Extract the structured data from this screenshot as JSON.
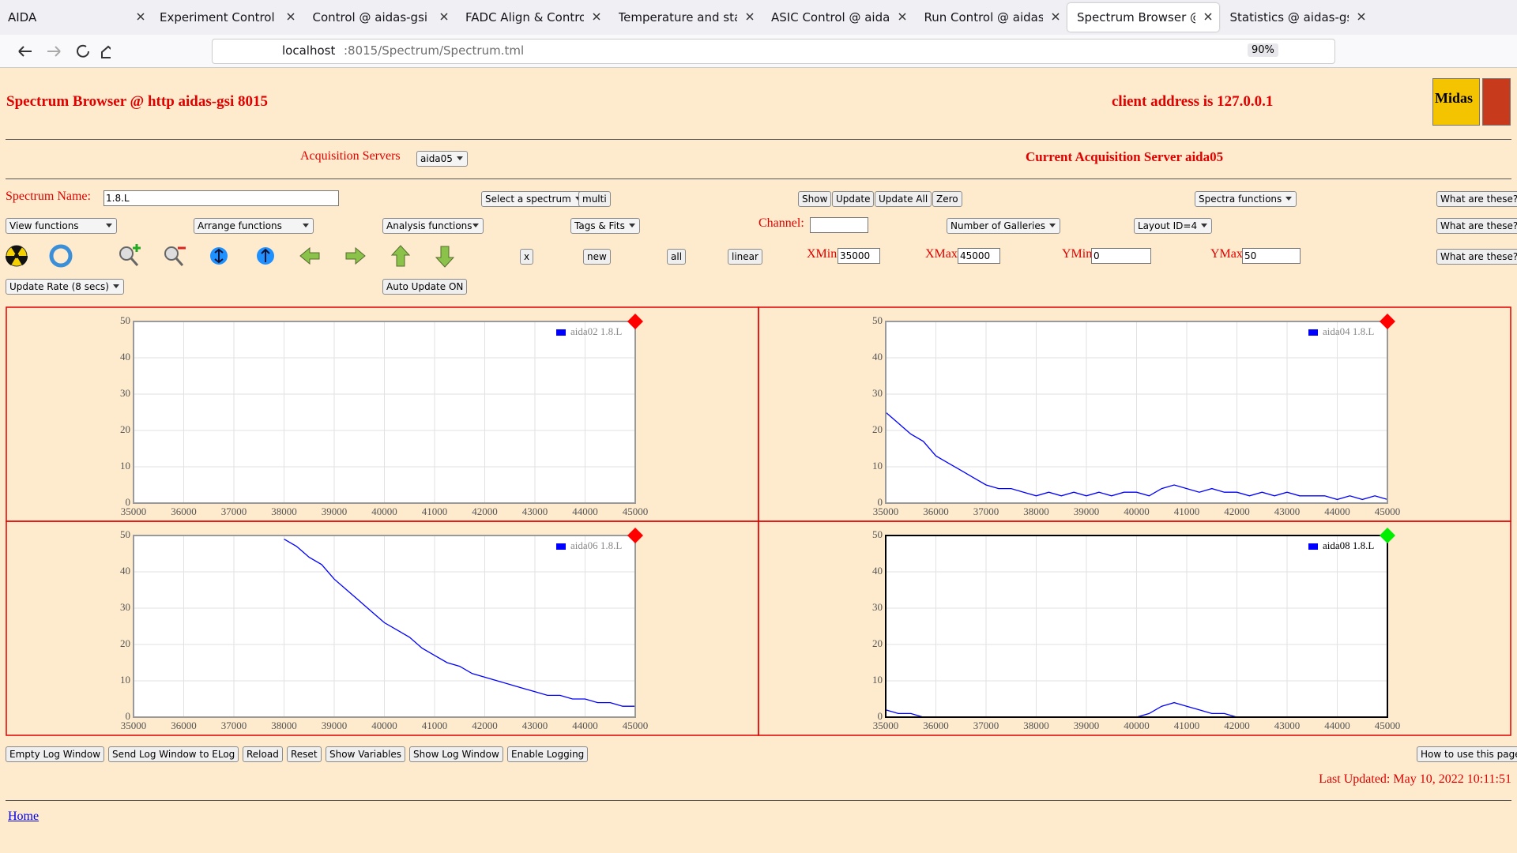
{
  "browser": {
    "tabs": [
      "AIDA",
      "Experiment Control @ ai",
      "Control @ aidas-gsi",
      "FADC Align & Control @",
      "Temperature and status",
      "ASIC Control @ aidas-gs",
      "Run Control @ aidas-gsi",
      "Spectrum Browser @ aid",
      "Statistics @ aidas-gsi"
    ],
    "active_tab": 7,
    "url_host": "localhost",
    "url_rest": ":8015/Spectrum/Spectrum.tml",
    "zoom": "90%"
  },
  "header": {
    "title": "Spectrum Browser @ http aidas-gsi 8015",
    "client": "client address is 127.0.0.1",
    "acq_label": "Acquisition Servers",
    "acq_select": "aida05",
    "current_server": "Current Acquisition Server aida05",
    "logo": "Midas"
  },
  "controls": {
    "spectrum_name_label": "Spectrum Name:",
    "spectrum_name": "1.8.L",
    "select_spectrum": "Select a spectrum",
    "multi": "multi",
    "buttons1": [
      "Show",
      "Update",
      "Update All",
      "Zero"
    ],
    "spectra_functions": "Spectra functions",
    "help": [
      "What are these?",
      "What are these?",
      "What are these?"
    ],
    "view": "View functions",
    "arrange": "Arrange functions",
    "analysis": "Analysis functions",
    "tags": "Tags & Fits",
    "channel_label": "Channel:",
    "galleries": "Number of Galleries",
    "layout": "Layout ID=4",
    "buttons3": [
      "x",
      "new",
      "all",
      "linear"
    ],
    "xmin_label": "XMin",
    "xmin": "35000",
    "xmax_label": "XMax",
    "xmax": "45000",
    "ymin_label": "YMin",
    "ymin": "0",
    "ymax_label": "YMax",
    "ymax": "50",
    "update_rate": "Update Rate (8 secs)",
    "auto_update": "Auto Update ON"
  },
  "chart_data": [
    {
      "type": "line",
      "xlim": [
        35000,
        45000
      ],
      "ylim": [
        0,
        50
      ],
      "xticks": [
        35000,
        36000,
        37000,
        38000,
        39000,
        40000,
        41000,
        42000,
        43000,
        44000,
        45000
      ],
      "yticks": [
        0,
        10,
        20,
        30,
        40,
        50
      ],
      "grid": true,
      "legend": "top-right",
      "frame_color": "#999999",
      "marker_color": "#ff0000",
      "x": [
        35000,
        35250,
        35500,
        35750,
        36000,
        36250,
        36500,
        36750,
        37000,
        37250,
        37500,
        37750,
        38000,
        38250,
        38500,
        38750,
        39000,
        39250,
        39500,
        39750,
        40000,
        40250,
        40500,
        40750,
        41000,
        41250,
        41500,
        41750,
        42000,
        42250,
        42500,
        42750,
        43000,
        43250,
        43500,
        43750,
        44000,
        44250,
        44500,
        44750,
        45000
      ],
      "series": [
        {
          "name": "aida02 1.8.L",
          "color": "#0000ff",
          "values": [
            0,
            0,
            0,
            0,
            0,
            0,
            0,
            0,
            0,
            0,
            0,
            0,
            0,
            0,
            0,
            0,
            0,
            0,
            0,
            0,
            0,
            0,
            0,
            0,
            0,
            0,
            0,
            0,
            0,
            0,
            0,
            0,
            0,
            0,
            0,
            0,
            0,
            0,
            0,
            0,
            0
          ]
        }
      ]
    },
    {
      "type": "line",
      "xlim": [
        35000,
        45000
      ],
      "ylim": [
        0,
        50
      ],
      "xticks": [
        35000,
        36000,
        37000,
        38000,
        39000,
        40000,
        41000,
        42000,
        43000,
        44000,
        45000
      ],
      "yticks": [
        0,
        10,
        20,
        30,
        40,
        50
      ],
      "grid": true,
      "legend": "top-right",
      "frame_color": "#999999",
      "marker_color": "#ff0000",
      "x": [
        35000,
        35250,
        35500,
        35750,
        36000,
        36250,
        36500,
        36750,
        37000,
        37250,
        37500,
        37750,
        38000,
        38250,
        38500,
        38750,
        39000,
        39250,
        39500,
        39750,
        40000,
        40250,
        40500,
        40750,
        41000,
        41250,
        41500,
        41750,
        42000,
        42250,
        42500,
        42750,
        43000,
        43250,
        43500,
        43750,
        44000,
        44250,
        44500,
        44750,
        45000
      ],
      "series": [
        {
          "name": "aida04 1.8.L",
          "color": "#0000ff",
          "values": [
            25,
            22,
            19,
            17,
            13,
            11,
            9,
            7,
            5,
            4,
            4,
            3,
            2,
            3,
            2,
            3,
            2,
            3,
            2,
            3,
            3,
            2,
            4,
            5,
            4,
            3,
            4,
            3,
            3,
            2,
            3,
            2,
            3,
            2,
            2,
            2,
            1,
            2,
            1,
            2,
            1
          ]
        }
      ]
    },
    {
      "type": "line",
      "xlim": [
        35000,
        45000
      ],
      "ylim": [
        0,
        50
      ],
      "xticks": [
        35000,
        36000,
        37000,
        38000,
        39000,
        40000,
        41000,
        42000,
        43000,
        44000,
        45000
      ],
      "yticks": [
        0,
        10,
        20,
        30,
        40,
        50
      ],
      "grid": true,
      "legend": "top-right",
      "frame_color": "#999999",
      "marker_color": "#ff0000",
      "x": [
        35000,
        35250,
        35500,
        35750,
        36000,
        36250,
        36500,
        36750,
        37000,
        37250,
        37500,
        37750,
        38000,
        38250,
        38500,
        38750,
        39000,
        39250,
        39500,
        39750,
        40000,
        40250,
        40500,
        40750,
        41000,
        41250,
        41500,
        41750,
        42000,
        42250,
        42500,
        42750,
        43000,
        43250,
        43500,
        43750,
        44000,
        44250,
        44500,
        44750,
        45000
      ],
      "series": [
        {
          "name": "aida06 1.8.L",
          "color": "#0000ff",
          "values": [
            null,
            null,
            null,
            null,
            null,
            null,
            null,
            null,
            null,
            null,
            null,
            null,
            49,
            47,
            44,
            42,
            38,
            35,
            32,
            29,
            26,
            24,
            22,
            19,
            17,
            15,
            14,
            12,
            11,
            10,
            9,
            8,
            7,
            6,
            6,
            5,
            5,
            4,
            4,
            3,
            3
          ]
        }
      ]
    },
    {
      "type": "line",
      "xlim": [
        35000,
        45000
      ],
      "ylim": [
        0,
        50
      ],
      "xticks": [
        35000,
        36000,
        37000,
        38000,
        39000,
        40000,
        41000,
        42000,
        43000,
        44000,
        45000
      ],
      "yticks": [
        0,
        10,
        20,
        30,
        40,
        50
      ],
      "grid": true,
      "legend": "top-right",
      "frame_color": "#000000",
      "marker_color": "#00ee00",
      "x": [
        35000,
        35250,
        35500,
        35750,
        36000,
        36250,
        36500,
        36750,
        37000,
        37250,
        37500,
        37750,
        38000,
        38250,
        38500,
        38750,
        39000,
        39250,
        39500,
        39750,
        40000,
        40250,
        40500,
        40750,
        41000,
        41250,
        41500,
        41750,
        42000,
        42250,
        42500,
        42750,
        43000,
        43250,
        43500,
        43750,
        44000,
        44250,
        44500,
        44750,
        45000
      ],
      "series": [
        {
          "name": "aida08 1.8.L",
          "color": "#0000ff",
          "values": [
            2,
            1,
            1,
            0,
            0,
            0,
            0,
            0,
            0,
            0,
            0,
            0,
            0,
            0,
            0,
            0,
            0,
            0,
            0,
            0,
            0,
            1,
            3,
            4,
            3,
            2,
            1,
            1,
            0,
            0,
            0,
            0,
            0,
            0,
            0,
            0,
            0,
            0,
            0,
            0,
            0
          ]
        }
      ]
    }
  ],
  "footer": {
    "buttons": [
      "Empty Log Window",
      "Send Log Window to ELog",
      "Reload",
      "Reset",
      "Show Variables",
      "Show Log Window",
      "Enable Logging"
    ],
    "how_to": "How to use this page",
    "last_updated": "Last Updated: May 10, 2022 10:11:51",
    "home": "Home"
  }
}
